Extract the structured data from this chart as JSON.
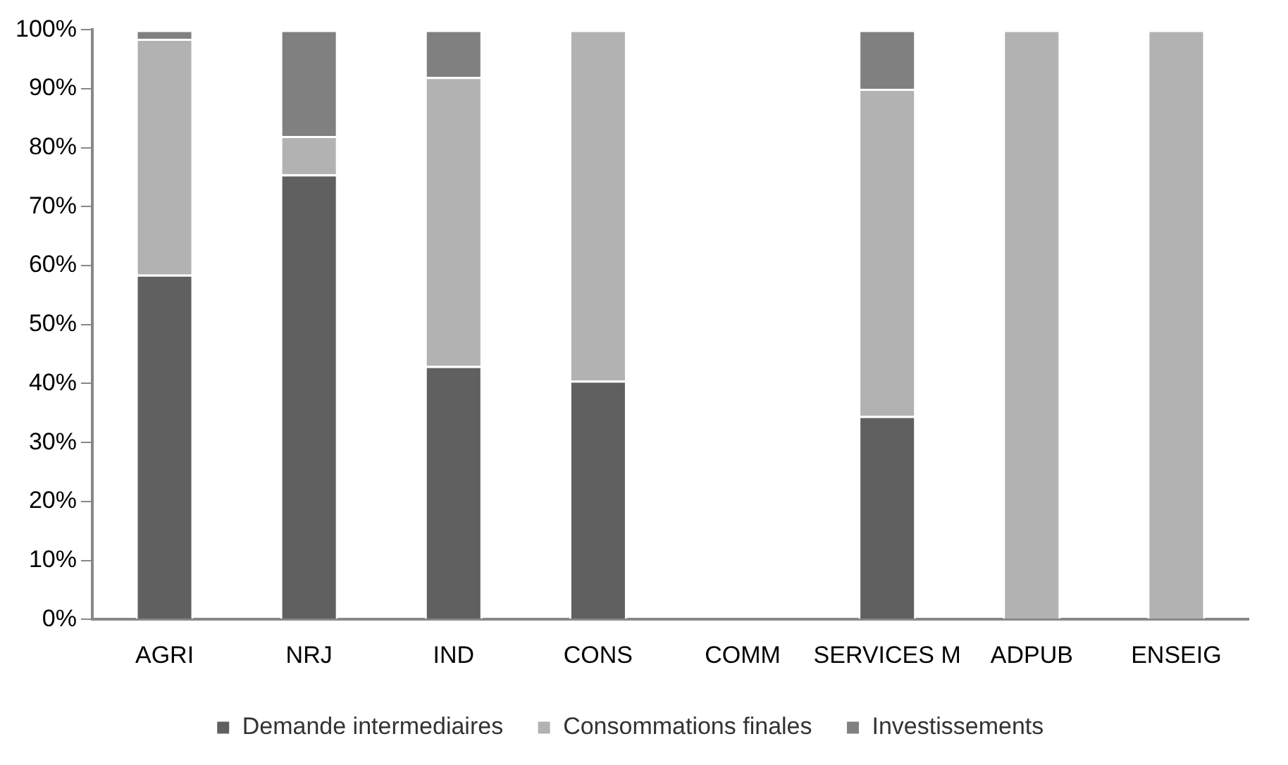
{
  "chart_data": {
    "type": "bar",
    "stacked": true,
    "categories": [
      "AGRI",
      "NRJ",
      "IND",
      "CONS",
      "COMM",
      "SERVICES M",
      "ADPUB",
      "ENSEIG"
    ],
    "series": [
      {
        "name": "Demande intermediaires",
        "color": "#606060",
        "values": [
          58.5,
          75.5,
          43,
          40.5,
          0,
          34.5,
          0,
          0
        ]
      },
      {
        "name": "Consommations finales",
        "color": "#b2b2b2",
        "values": [
          40,
          6.5,
          49,
          59.5,
          0,
          55.5,
          100,
          100
        ]
      },
      {
        "name": "Investissements",
        "color": "#808080",
        "values": [
          1.5,
          18,
          8,
          0,
          0,
          10,
          0,
          0
        ]
      }
    ],
    "ylim": [
      0,
      100
    ],
    "yticks": [
      {
        "value": 0,
        "label": "0%"
      },
      {
        "value": 10,
        "label": "10%"
      },
      {
        "value": 20,
        "label": "20%"
      },
      {
        "value": 30,
        "label": "30%"
      },
      {
        "value": 40,
        "label": "40%"
      },
      {
        "value": 50,
        "label": "50%"
      },
      {
        "value": 60,
        "label": "60%"
      },
      {
        "value": 70,
        "label": "70%"
      },
      {
        "value": 80,
        "label": "80%"
      },
      {
        "value": 90,
        "label": "90%"
      },
      {
        "value": 100,
        "label": "100%"
      }
    ],
    "grid": false,
    "legend": "bottom"
  }
}
